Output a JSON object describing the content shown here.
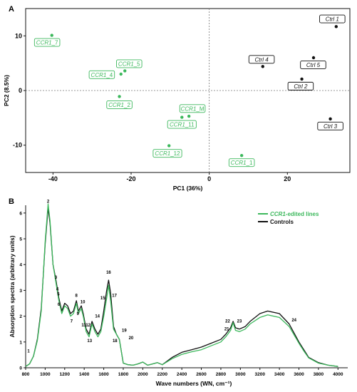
{
  "chart_data": [
    {
      "type": "scatter",
      "panel_label": "A",
      "xlabel": "PC1 (36%)",
      "ylabel": "PC2 (8.5%)",
      "xlim": [
        -47,
        36
      ],
      "ylim": [
        -15,
        15
      ],
      "xticks": [
        -40,
        -20,
        0,
        20
      ],
      "yticks": [
        -10,
        0,
        10
      ],
      "xtick_labels": [
        "-40",
        "-20",
        "0",
        "20"
      ],
      "ytick_labels": [
        "-10",
        "0",
        "10"
      ],
      "zero_lines": true,
      "colors": {
        "ccr1": "#3cb85c",
        "ctrl": "#111111"
      },
      "points": [
        {
          "label": "CCR1_7",
          "prefix": "CCR1",
          "suffix": "_7",
          "group": "ccr1",
          "x": -40.3,
          "y": 10.1,
          "lx": -41.5,
          "ly": 8.8
        },
        {
          "label": "CCR1_5",
          "prefix": "CCR1",
          "suffix": "_5",
          "group": "ccr1",
          "x": -21.6,
          "y": 3.6,
          "lx": -20.5,
          "ly": 4.9
        },
        {
          "label": "CCR1_4",
          "prefix": "CCR1",
          "suffix": "_4",
          "group": "ccr1",
          "x": -22.6,
          "y": 3.0,
          "lx": -27.5,
          "ly": 2.9
        },
        {
          "label": "CCR1_2",
          "prefix": "CCR1",
          "suffix": "_2",
          "group": "ccr1",
          "x": -23.0,
          "y": -1.1,
          "lx": -23.0,
          "ly": -2.6
        },
        {
          "label": "CCR1_M",
          "prefix": "CCR1",
          "suffix": "_M",
          "group": "ccr1",
          "x": -5.2,
          "y": -4.7,
          "lx": -4.3,
          "ly": -3.3
        },
        {
          "label": "CCR1_11",
          "prefix": "CCR1",
          "suffix": "_11",
          "group": "ccr1",
          "x": -7.0,
          "y": -4.9,
          "lx": -7.0,
          "ly": -6.2
        },
        {
          "label": "CCR1_12",
          "prefix": "CCR1",
          "suffix": "_12",
          "group": "ccr1",
          "x": -10.3,
          "y": -10.1,
          "lx": -10.7,
          "ly": -11.5
        },
        {
          "label": "CCR1_1",
          "prefix": "CCR1",
          "suffix": "_1",
          "group": "ccr1",
          "x": 8.3,
          "y": -11.9,
          "lx": 8.3,
          "ly": -13.2
        },
        {
          "label": "Ctrl 1",
          "prefix": "Ctrl 1",
          "suffix": "",
          "group": "ctrl",
          "x": 32.5,
          "y": 11.7,
          "lx": 31.5,
          "ly": 13.1
        },
        {
          "label": "Ctrl 4",
          "prefix": "Ctrl 4",
          "suffix": "",
          "group": "ctrl",
          "x": 13.7,
          "y": 4.4,
          "lx": 13.4,
          "ly": 5.7
        },
        {
          "label": "Ctrl 5",
          "prefix": "Ctrl 5",
          "suffix": "",
          "group": "ctrl",
          "x": 26.7,
          "y": 6.0,
          "lx": 26.6,
          "ly": 4.7
        },
        {
          "label": "Ctrl 2",
          "prefix": "Ctrl 2",
          "suffix": "",
          "group": "ctrl",
          "x": 23.7,
          "y": 2.1,
          "lx": 23.4,
          "ly": 0.8
        },
        {
          "label": "Ctrl 3",
          "prefix": "Ctrl 3",
          "suffix": "",
          "group": "ctrl",
          "x": 31.0,
          "y": -5.2,
          "lx": 31.0,
          "ly": -6.5
        }
      ]
    },
    {
      "type": "line",
      "panel_label": "B",
      "xlabel": "Wave numbers (WN, cm⁻¹)",
      "ylabel": "Absorption spectra (arbitrary units)",
      "xlim": [
        800,
        4100
      ],
      "ylim": [
        0,
        6.3
      ],
      "xticks": [
        800,
        1000,
        1200,
        1400,
        1600,
        1800,
        2000,
        2200,
        2400,
        2600,
        2800,
        3000,
        3200,
        3400,
        3600,
        3800,
        4000
      ],
      "yticks": [
        0,
        1,
        2,
        3,
        4,
        5,
        6
      ],
      "grid": false,
      "legend_position": "top-right",
      "x": [
        800,
        840,
        880,
        920,
        960,
        1000,
        1030,
        1050,
        1080,
        1110,
        1140,
        1170,
        1200,
        1230,
        1260,
        1290,
        1320,
        1340,
        1370,
        1390,
        1420,
        1450,
        1480,
        1510,
        1540,
        1570,
        1600,
        1630,
        1650,
        1670,
        1700,
        1730,
        1760,
        1800,
        1850,
        1900,
        1950,
        2000,
        2050,
        2100,
        2150,
        2200,
        2300,
        2400,
        2500,
        2600,
        2700,
        2800,
        2850,
        2900,
        2925,
        2950,
        2990,
        3050,
        3100,
        3200,
        3280,
        3400,
        3500,
        3600,
        3650,
        3700,
        3800,
        3900,
        4000
      ],
      "series": [
        {
          "name": "Controls",
          "color": "#111111",
          "values": [
            0.05,
            0.15,
            0.45,
            1.1,
            2.3,
            4.8,
            6.2,
            5.6,
            4.0,
            3.4,
            2.7,
            2.2,
            2.5,
            2.4,
            2.1,
            2.2,
            2.6,
            2.2,
            2.4,
            2.1,
            1.5,
            1.3,
            1.8,
            1.5,
            1.3,
            1.5,
            2.2,
            3.0,
            3.4,
            2.9,
            1.6,
            1.3,
            1.1,
            0.18,
            0.12,
            0.1,
            0.15,
            0.22,
            0.1,
            0.15,
            0.2,
            0.12,
            0.4,
            0.6,
            0.7,
            0.8,
            0.95,
            1.1,
            1.3,
            1.55,
            1.8,
            1.55,
            1.5,
            1.6,
            1.8,
            2.1,
            2.2,
            2.1,
            1.7,
            1.0,
            0.7,
            0.4,
            0.2,
            0.1,
            0.05
          ]
        },
        {
          "name": "CCR1-edited lines",
          "color": "#3cb85c",
          "values": [
            0.05,
            0.15,
            0.45,
            1.05,
            2.2,
            4.9,
            6.35,
            5.7,
            4.0,
            3.3,
            2.6,
            2.1,
            2.4,
            2.3,
            2.0,
            2.1,
            2.5,
            2.1,
            2.3,
            2.0,
            1.4,
            1.2,
            1.7,
            1.4,
            1.2,
            1.4,
            2.0,
            2.7,
            3.2,
            2.6,
            1.5,
            1.3,
            1.1,
            0.18,
            0.12,
            0.1,
            0.15,
            0.22,
            0.1,
            0.15,
            0.2,
            0.12,
            0.35,
            0.52,
            0.62,
            0.7,
            0.85,
            1.0,
            1.2,
            1.45,
            1.75,
            1.45,
            1.4,
            1.5,
            1.7,
            1.95,
            2.05,
            1.95,
            1.6,
            0.95,
            0.65,
            0.38,
            0.18,
            0.1,
            0.05
          ]
        }
      ],
      "legend": [
        {
          "prefix": "CCR1",
          "suffix": "-edited lines",
          "color": "#3cb85c"
        },
        {
          "prefix": "Controls",
          "suffix": "",
          "color": "#111111"
        }
      ],
      "peaks": [
        {
          "label": "1",
          "x": 830,
          "y": 0.6
        },
        {
          "label": "2",
          "x": 1030,
          "y": 6.4
        },
        {
          "label": "3",
          "x": 1110,
          "y": 3.45
        },
        {
          "label": "4",
          "x": 1125,
          "y": 3.0
        },
        {
          "label": "5",
          "x": 1135,
          "y": 2.8
        },
        {
          "label": "6",
          "x": 1140,
          "y": 2.4
        },
        {
          "label": "7",
          "x": 1270,
          "y": 1.75
        },
        {
          "label": "8",
          "x": 1320,
          "y": 2.75
        },
        {
          "label": "9",
          "x": 1335,
          "y": 2.05
        },
        {
          "label": "10",
          "x": 1385,
          "y": 2.5
        },
        {
          "label": "11",
          "x": 1395,
          "y": 1.6
        },
        {
          "label": "12",
          "x": 1440,
          "y": 1.6
        },
        {
          "label": "13",
          "x": 1455,
          "y": 1.0
        },
        {
          "label": "14",
          "x": 1535,
          "y": 1.95
        },
        {
          "label": "15",
          "x": 1590,
          "y": 2.65
        },
        {
          "label": "16",
          "x": 1650,
          "y": 3.65
        },
        {
          "label": "17",
          "x": 1710,
          "y": 2.75
        },
        {
          "label": "18",
          "x": 1715,
          "y": 1.0
        },
        {
          "label": "19",
          "x": 1810,
          "y": 1.4
        },
        {
          "label": "20",
          "x": 1880,
          "y": 1.1
        },
        {
          "label": "21",
          "x": 2860,
          "y": 1.45
        },
        {
          "label": "22",
          "x": 2870,
          "y": 1.75
        },
        {
          "label": "23",
          "x": 2990,
          "y": 1.75
        },
        {
          "label": "24",
          "x": 3550,
          "y": 1.8
        }
      ]
    }
  ]
}
